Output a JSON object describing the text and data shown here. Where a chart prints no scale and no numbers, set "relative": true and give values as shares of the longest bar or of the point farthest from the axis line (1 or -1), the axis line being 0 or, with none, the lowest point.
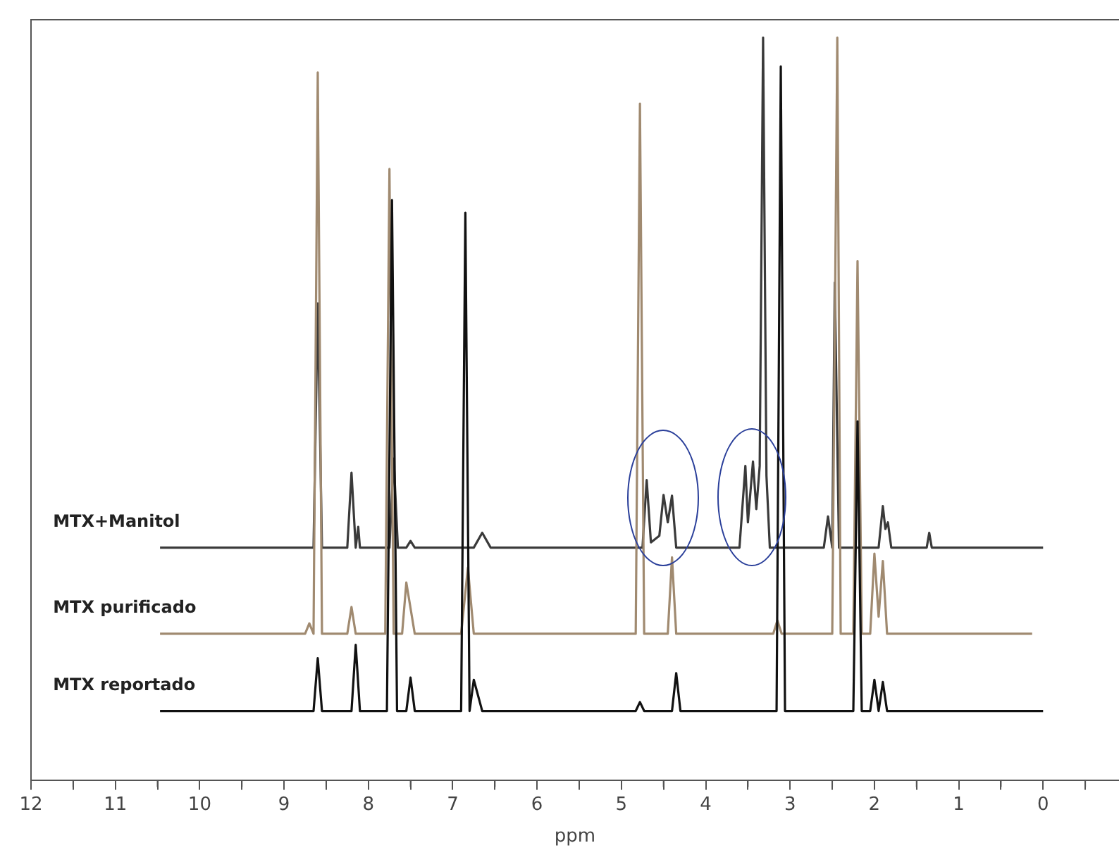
{
  "chart_data": {
    "type": "line",
    "relative": true,
    "xlabel": "ppm",
    "xlim": [
      12,
      -0.9
    ],
    "xticks": [
      12,
      {
        "value": 11.5,
        "label": null
      },
      11,
      {
        "value": 10.5,
        "label": null
      },
      10,
      {
        "value": 9.5,
        "label": null
      },
      9,
      {
        "value": 8.5,
        "label": null
      },
      8,
      {
        "value": 7.5,
        "label": null
      },
      7,
      {
        "value": 6.5,
        "label": null
      },
      6,
      {
        "value": 5.5,
        "label": null
      },
      5,
      {
        "value": 4.5,
        "label": null
      },
      4,
      {
        "value": 3.5,
        "label": null
      },
      3,
      {
        "value": 2.5,
        "label": null
      },
      2,
      {
        "value": 1.5,
        "label": null
      },
      1,
      {
        "value": 0.5,
        "label": null
      },
      0,
      {
        "value": -0.5,
        "label": null
      }
    ],
    "grid": false,
    "legend": false,
    "marker": "none",
    "line_style": "solid",
    "series": [
      {
        "name": "MTX+Manitol",
        "color": "#3a3a3a",
        "x": [
          10.47,
          8.65,
          8.6,
          8.55,
          8.25,
          8.2,
          8.15,
          8.12,
          8.1,
          7.75,
          7.7,
          7.65,
          7.55,
          7.5,
          7.45,
          6.75,
          6.65,
          6.55,
          4.75,
          4.7,
          4.65,
          4.55,
          4.5,
          4.45,
          4.4,
          4.35,
          3.6,
          3.53,
          3.5,
          3.44,
          3.4,
          3.36,
          3.32,
          3.28,
          3.24,
          2.6,
          2.55,
          2.5,
          2.47,
          2.42,
          1.95,
          1.9,
          1.87,
          1.84,
          1.8,
          1.38,
          1.35,
          1.32,
          0.0
        ],
        "values": [
          0.313,
          0.313,
          0.642,
          0.313,
          0.313,
          0.414,
          0.313,
          0.341,
          0.313,
          0.313,
          0.433,
          0.313,
          0.313,
          0.322,
          0.313,
          0.313,
          0.333,
          0.313,
          0.313,
          0.404,
          0.32,
          0.329,
          0.384,
          0.347,
          0.383,
          0.313,
          0.313,
          0.423,
          0.347,
          0.429,
          0.365,
          0.423,
          1.0,
          0.41,
          0.313,
          0.313,
          0.355,
          0.313,
          0.67,
          0.313,
          0.313,
          0.369,
          0.338,
          0.347,
          0.313,
          0.313,
          0.333,
          0.313,
          0.313
        ]
      },
      {
        "name": "MTX purificado",
        "color": "#a08a70",
        "x": [
          10.47,
          8.75,
          8.7,
          8.65,
          8.6,
          8.55,
          8.25,
          8.2,
          8.15,
          7.8,
          7.75,
          7.7,
          7.6,
          7.55,
          7.45,
          6.9,
          6.82,
          6.75,
          4.83,
          4.78,
          4.73,
          4.45,
          4.4,
          4.35,
          3.2,
          3.15,
          3.1,
          2.5,
          2.44,
          2.4,
          2.25,
          2.2,
          2.15,
          2.05,
          2.0,
          1.95,
          1.9,
          1.85,
          0.13
        ],
        "values": [
          0.197,
          0.197,
          0.211,
          0.197,
          0.953,
          0.197,
          0.197,
          0.233,
          0.197,
          0.197,
          0.823,
          0.197,
          0.197,
          0.266,
          0.197,
          0.197,
          0.286,
          0.197,
          0.197,
          0.911,
          0.197,
          0.197,
          0.3,
          0.197,
          0.197,
          0.215,
          0.197,
          0.197,
          1.0,
          0.197,
          0.197,
          0.699,
          0.197,
          0.197,
          0.305,
          0.22,
          0.295,
          0.197,
          0.197
        ]
      },
      {
        "name": "MTX reportado",
        "color": "#111111",
        "x": [
          10.47,
          8.65,
          8.6,
          8.55,
          8.2,
          8.15,
          8.1,
          7.78,
          7.72,
          7.66,
          7.55,
          7.5,
          7.45,
          6.9,
          6.85,
          6.8,
          6.75,
          6.65,
          4.83,
          4.78,
          4.73,
          4.4,
          4.35,
          4.3,
          3.16,
          3.11,
          3.06,
          2.25,
          2.2,
          2.15,
          2.05,
          2.0,
          1.95,
          1.9,
          1.85,
          0.0
        ],
        "values": [
          0.093,
          0.093,
          0.164,
          0.093,
          0.093,
          0.182,
          0.093,
          0.093,
          0.781,
          0.093,
          0.093,
          0.138,
          0.093,
          0.093,
          0.764,
          0.093,
          0.135,
          0.093,
          0.093,
          0.105,
          0.093,
          0.093,
          0.144,
          0.093,
          0.093,
          0.961,
          0.093,
          0.093,
          0.483,
          0.093,
          0.093,
          0.135,
          0.093,
          0.132,
          0.093,
          0.093
        ]
      }
    ]
  }
}
